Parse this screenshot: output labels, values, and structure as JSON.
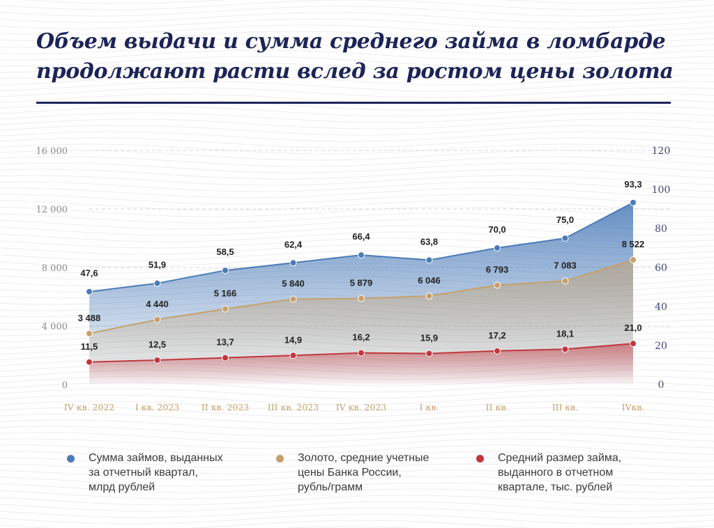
{
  "title": "Объем выдачи и сумма среднего займа в ломбарде продолжают расти вслед за ростом цены золота",
  "chart_data": {
    "type": "line",
    "categories": [
      "IV кв. 2022",
      "I кв. 2023",
      "II кв. 2023",
      "III кв. 2023",
      "IV кв. 2023",
      "I кв.",
      "II кв.",
      "III кв.",
      "IVкв."
    ],
    "left_axis": {
      "ylim": [
        0,
        16000
      ],
      "ticks": [
        0,
        4000,
        8000,
        12000,
        16000
      ],
      "tick_labels": [
        "0",
        "4 000",
        "8 000",
        "12 000",
        "16 000"
      ]
    },
    "right_axis": {
      "ylim": [
        0,
        120
      ],
      "ticks": [
        0,
        20,
        40,
        60,
        80,
        100,
        120
      ],
      "tick_labels": [
        "0",
        "20",
        "40",
        "60",
        "80",
        "100",
        "120"
      ]
    },
    "series": [
      {
        "name": "Сумма займов, выданных\nза отчетный квартал,\nмлрд рублей",
        "axis": "right",
        "color": "#4a7bb8",
        "values": [
          47.6,
          51.9,
          58.5,
          62.4,
          66.4,
          63.8,
          70.0,
          75.0,
          93.3
        ],
        "labels": [
          "47,6",
          "51,9",
          "58,5",
          "62,4",
          "66,4",
          "63,8",
          "70,0",
          "75,0",
          "93,3"
        ]
      },
      {
        "name": "Золото, средние учетные\nцены Банка России,\nрубль/грамм",
        "axis": "left",
        "color": "#c5a06b",
        "values": [
          3488,
          4440,
          5166,
          5840,
          5879,
          6046,
          6793,
          7083,
          8522
        ],
        "labels": [
          "3 488",
          "4 440",
          "5 166",
          "5 840",
          "5 879",
          "6 046",
          "6 793",
          "7 083",
          "8 522"
        ]
      },
      {
        "name": "Средний размер займа,\nвыданного в отчетном\nквартале, тыс. рублей",
        "axis": "right",
        "color": "#c0363c",
        "values": [
          11.5,
          12.5,
          13.7,
          14.9,
          16.2,
          15.9,
          17.2,
          18.1,
          21.0
        ],
        "labels": [
          "11,5",
          "12,5",
          "13,7",
          "14,9",
          "16,2",
          "15,9",
          "17,2",
          "18,1",
          "21,0"
        ]
      }
    ],
    "grid": true,
    "legend_position": "bottom"
  },
  "colors": {
    "title": "#1c2457",
    "left_axis_text": "#8a8a8a",
    "right_axis_text": "#3c4778",
    "category_text": "#c5a06b",
    "grid": "#d5d5d5"
  }
}
